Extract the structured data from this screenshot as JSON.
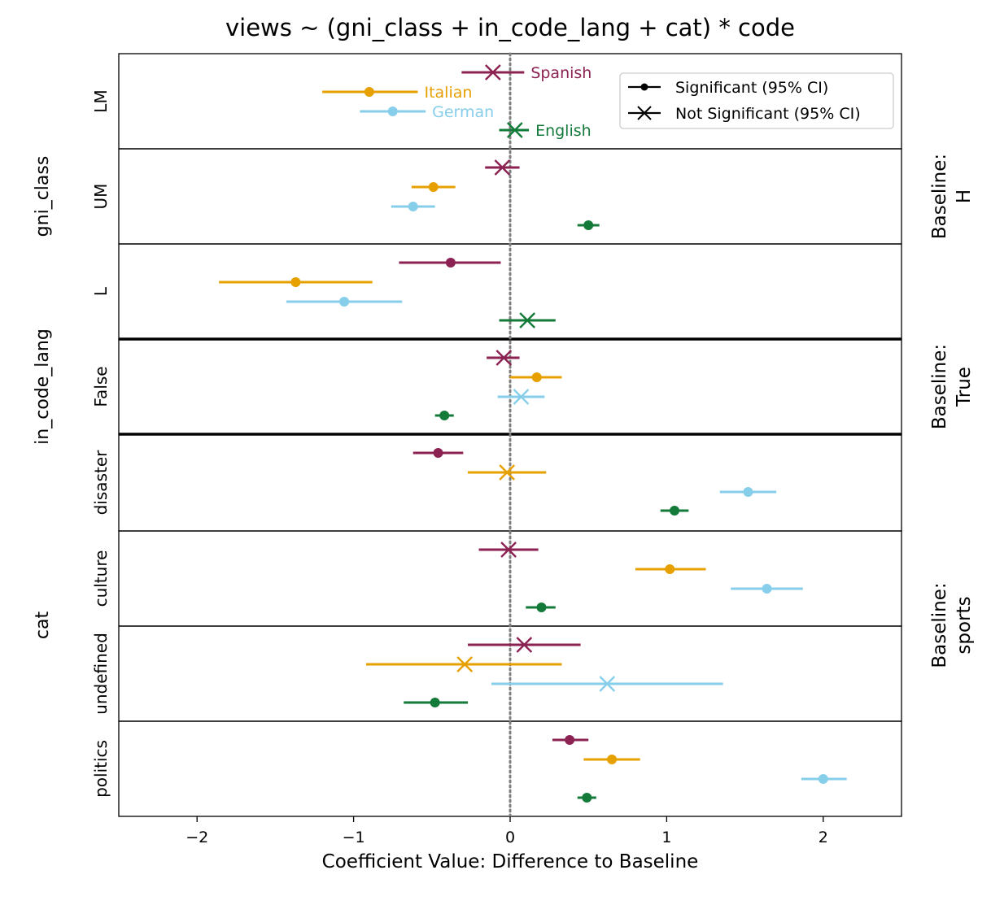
{
  "chart_data": {
    "type": "forest",
    "title": "views ~ (gni_class + in_code_lang + cat) * code",
    "xlabel": "Coefficient Value: Difference to Baseline",
    "xlim": [
      -2.5,
      2.5
    ],
    "xticks": [
      {
        "value": -2,
        "label": "−2"
      },
      {
        "value": -1,
        "label": "−1"
      },
      {
        "value": 0,
        "label": "0"
      },
      {
        "value": 1,
        "label": "1"
      },
      {
        "value": 2,
        "label": "2"
      }
    ],
    "zero_reference_line": "dotted",
    "legend": {
      "placement": "upper right",
      "items": [
        {
          "marker": "dot",
          "label": "Significant (95% CI)"
        },
        {
          "marker": "x",
          "label": "Not Significant (95% CI)"
        }
      ]
    },
    "series": [
      {
        "name": "Spanish",
        "color": "#8B2252"
      },
      {
        "name": "Italian",
        "color": "#E6A000"
      },
      {
        "name": "German",
        "color": "#87CEEB"
      },
      {
        "name": "English",
        "color": "#137A3A"
      }
    ],
    "groups": [
      {
        "name": "gni_class",
        "baseline": "Baseline:\nH",
        "rows": [
          "LM",
          "UM",
          "L"
        ]
      },
      {
        "name": "in_code_lang",
        "baseline": "Baseline:\nTrue",
        "rows": [
          "False"
        ]
      },
      {
        "name": "cat",
        "baseline": "Baseline:\nsports",
        "rows": [
          "disaster",
          "culture",
          "undefined",
          "politics"
        ]
      }
    ],
    "rows": [
      {
        "label": "LM",
        "points": [
          {
            "series": "Spanish",
            "value": -0.11,
            "lo": -0.31,
            "hi": 0.09,
            "significant": false
          },
          {
            "series": "Italian",
            "value": -0.9,
            "lo": -1.2,
            "hi": -0.59,
            "significant": true
          },
          {
            "series": "German",
            "value": -0.75,
            "lo": -0.96,
            "hi": -0.54,
            "significant": true
          },
          {
            "series": "English",
            "value": 0.03,
            "lo": -0.07,
            "hi": 0.12,
            "significant": false
          }
        ]
      },
      {
        "label": "UM",
        "points": [
          {
            "series": "Spanish",
            "value": -0.05,
            "lo": -0.16,
            "hi": 0.06,
            "significant": false
          },
          {
            "series": "Italian",
            "value": -0.49,
            "lo": -0.63,
            "hi": -0.35,
            "significant": true
          },
          {
            "series": "German",
            "value": -0.62,
            "lo": -0.76,
            "hi": -0.48,
            "significant": true
          },
          {
            "series": "English",
            "value": 0.5,
            "lo": 0.43,
            "hi": 0.57,
            "significant": true
          }
        ]
      },
      {
        "label": "L",
        "points": [
          {
            "series": "Spanish",
            "value": -0.38,
            "lo": -0.71,
            "hi": -0.06,
            "significant": true
          },
          {
            "series": "Italian",
            "value": -1.37,
            "lo": -1.86,
            "hi": -0.88,
            "significant": true
          },
          {
            "series": "German",
            "value": -1.06,
            "lo": -1.43,
            "hi": -0.69,
            "significant": true
          },
          {
            "series": "English",
            "value": 0.11,
            "lo": -0.07,
            "hi": 0.29,
            "significant": false
          }
        ]
      },
      {
        "label": "False",
        "points": [
          {
            "series": "Spanish",
            "value": -0.04,
            "lo": -0.15,
            "hi": 0.06,
            "significant": false
          },
          {
            "series": "Italian",
            "value": 0.17,
            "lo": 0.0,
            "hi": 0.33,
            "significant": true
          },
          {
            "series": "German",
            "value": 0.07,
            "lo": -0.08,
            "hi": 0.22,
            "significant": false
          },
          {
            "series": "English",
            "value": -0.42,
            "lo": -0.48,
            "hi": -0.36,
            "significant": true
          }
        ]
      },
      {
        "label": "disaster",
        "points": [
          {
            "series": "Spanish",
            "value": -0.46,
            "lo": -0.62,
            "hi": -0.3,
            "significant": true
          },
          {
            "series": "Italian",
            "value": -0.02,
            "lo": -0.27,
            "hi": 0.23,
            "significant": false
          },
          {
            "series": "German",
            "value": 1.52,
            "lo": 1.34,
            "hi": 1.7,
            "significant": true
          },
          {
            "series": "English",
            "value": 1.05,
            "lo": 0.96,
            "hi": 1.14,
            "significant": true
          }
        ]
      },
      {
        "label": "culture",
        "points": [
          {
            "series": "Spanish",
            "value": -0.01,
            "lo": -0.2,
            "hi": 0.18,
            "significant": false
          },
          {
            "series": "Italian",
            "value": 1.02,
            "lo": 0.8,
            "hi": 1.25,
            "significant": true
          },
          {
            "series": "German",
            "value": 1.64,
            "lo": 1.41,
            "hi": 1.87,
            "significant": true
          },
          {
            "series": "English",
            "value": 0.2,
            "lo": 0.1,
            "hi": 0.29,
            "significant": true
          }
        ]
      },
      {
        "label": "undefined",
        "points": [
          {
            "series": "Spanish",
            "value": 0.09,
            "lo": -0.27,
            "hi": 0.45,
            "significant": false
          },
          {
            "series": "Italian",
            "value": -0.29,
            "lo": -0.92,
            "hi": 0.33,
            "significant": false
          },
          {
            "series": "German",
            "value": 0.62,
            "lo": -0.12,
            "hi": 1.36,
            "significant": false
          },
          {
            "series": "English",
            "value": -0.48,
            "lo": -0.68,
            "hi": -0.27,
            "significant": true
          }
        ]
      },
      {
        "label": "politics",
        "points": [
          {
            "series": "Spanish",
            "value": 0.38,
            "lo": 0.27,
            "hi": 0.5,
            "significant": true
          },
          {
            "series": "Italian",
            "value": 0.65,
            "lo": 0.47,
            "hi": 0.83,
            "significant": true
          },
          {
            "series": "German",
            "value": 2.0,
            "lo": 1.86,
            "hi": 2.15,
            "significant": true
          },
          {
            "series": "English",
            "value": 0.49,
            "lo": 0.43,
            "hi": 0.55,
            "significant": true
          }
        ]
      }
    ]
  }
}
